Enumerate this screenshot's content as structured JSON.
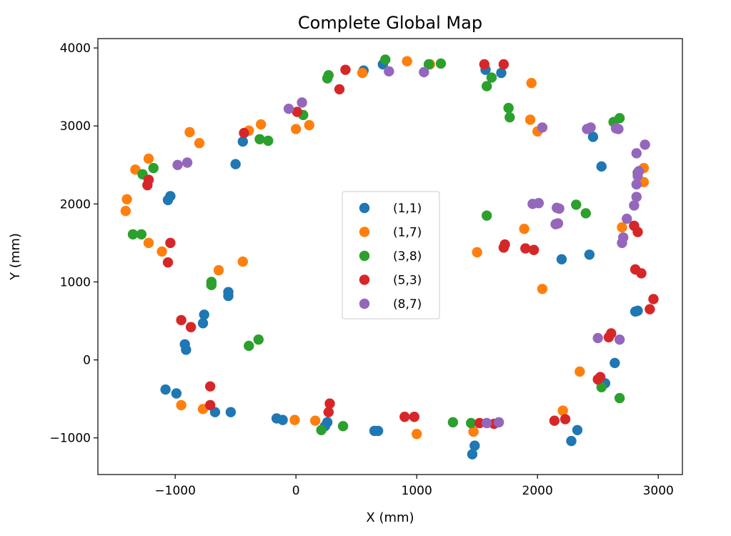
{
  "chart_data": {
    "type": "scatter",
    "title": "Complete Global Map",
    "xlabel": "X (mm)",
    "ylabel": "Y (mm)",
    "xlim": [
      -1640,
      3200
    ],
    "ylim": [
      -1470,
      4120
    ],
    "xticks": [
      -1000,
      0,
      1000,
      2000,
      3000
    ],
    "xtick_labels": [
      "−1000",
      "0",
      "1000",
      "2000",
      "3000"
    ],
    "yticks": [
      -1000,
      0,
      1000,
      2000,
      3000,
      4000
    ],
    "ytick_labels": [
      "−1000",
      "0",
      "1000",
      "2000",
      "3000",
      "4000"
    ],
    "grid": false,
    "legend_position": "center",
    "series": [
      {
        "name": "(1,1)",
        "color": "#1f77b4",
        "points": [
          [
            -1060,
            2050
          ],
          [
            -1040,
            2100
          ],
          [
            -500,
            2510
          ],
          [
            -440,
            2800
          ],
          [
            560,
            3710
          ],
          [
            720,
            3790
          ],
          [
            1570,
            3720
          ],
          [
            1700,
            3680
          ],
          [
            2460,
            2860
          ],
          [
            2530,
            2480
          ],
          [
            2430,
            1350
          ],
          [
            2200,
            1290
          ],
          [
            2810,
            620
          ],
          [
            2830,
            630
          ],
          [
            2640,
            -40
          ],
          [
            2560,
            -300
          ],
          [
            2330,
            -900
          ],
          [
            2280,
            -1040
          ],
          [
            1480,
            -1100
          ],
          [
            1460,
            -1210
          ],
          [
            650,
            -910
          ],
          [
            680,
            -910
          ],
          [
            260,
            -800
          ],
          [
            240,
            -850
          ],
          [
            -160,
            -750
          ],
          [
            -110,
            -770
          ],
          [
            -540,
            -670
          ],
          [
            -670,
            -670
          ],
          [
            -1080,
            -380
          ],
          [
            -990,
            -430
          ],
          [
            -920,
            200
          ],
          [
            -910,
            130
          ],
          [
            -760,
            580
          ],
          [
            -770,
            470
          ],
          [
            -560,
            870
          ],
          [
            -560,
            820
          ]
        ]
      },
      {
        "name": "(1,7)",
        "color": "#ff7f0e",
        "points": [
          [
            -1400,
            2060
          ],
          [
            -1410,
            1910
          ],
          [
            -1330,
            2440
          ],
          [
            -1220,
            2580
          ],
          [
            -880,
            2920
          ],
          [
            -800,
            2780
          ],
          [
            -290,
            3020
          ],
          [
            -390,
            2940
          ],
          [
            0,
            2960
          ],
          [
            110,
            3010
          ],
          [
            550,
            3680
          ],
          [
            920,
            3830
          ],
          [
            1110,
            3790
          ],
          [
            1950,
            3550
          ],
          [
            1940,
            3080
          ],
          [
            2000,
            2930
          ],
          [
            2880,
            2460
          ],
          [
            2880,
            2280
          ],
          [
            2700,
            1700
          ],
          [
            1890,
            1680
          ],
          [
            1500,
            1380
          ],
          [
            2040,
            910
          ],
          [
            2350,
            -150
          ],
          [
            2210,
            -650
          ],
          [
            1470,
            -920
          ],
          [
            1000,
            -950
          ],
          [
            160,
            -780
          ],
          [
            -10,
            -770
          ],
          [
            -770,
            -630
          ],
          [
            -950,
            -580
          ],
          [
            -1110,
            1390
          ],
          [
            -1220,
            1500
          ],
          [
            -640,
            1150
          ],
          [
            -440,
            1260
          ]
        ]
      },
      {
        "name": "(3,8)",
        "color": "#2ca02c",
        "points": [
          [
            -1350,
            1610
          ],
          [
            -1280,
            1610
          ],
          [
            -1270,
            2380
          ],
          [
            -1180,
            2460
          ],
          [
            -300,
            2830
          ],
          [
            -230,
            2810
          ],
          [
            60,
            3140
          ],
          [
            260,
            3610
          ],
          [
            270,
            3650
          ],
          [
            740,
            3850
          ],
          [
            1100,
            3790
          ],
          [
            1200,
            3800
          ],
          [
            1620,
            3620
          ],
          [
            1580,
            3510
          ],
          [
            1760,
            3230
          ],
          [
            1770,
            3110
          ],
          [
            2630,
            3050
          ],
          [
            2680,
            3100
          ],
          [
            2830,
            2400
          ],
          [
            2320,
            1990
          ],
          [
            2400,
            1880
          ],
          [
            1580,
            1850
          ],
          [
            2680,
            -490
          ],
          [
            2530,
            -350
          ],
          [
            1450,
            -810
          ],
          [
            1300,
            -800
          ],
          [
            390,
            -850
          ],
          [
            210,
            -900
          ],
          [
            -310,
            260
          ],
          [
            -390,
            180
          ],
          [
            -700,
            1000
          ],
          [
            -700,
            960
          ]
        ]
      },
      {
        "name": "(5,3)",
        "color": "#d62728",
        "points": [
          [
            -1220,
            2310
          ],
          [
            -1230,
            2240
          ],
          [
            -430,
            2910
          ],
          [
            10,
            3180
          ],
          [
            360,
            3470
          ],
          [
            410,
            3720
          ],
          [
            1560,
            3790
          ],
          [
            1720,
            3790
          ],
          [
            2800,
            1720
          ],
          [
            2830,
            1640
          ],
          [
            2810,
            1160
          ],
          [
            2860,
            1110
          ],
          [
            2960,
            780
          ],
          [
            2930,
            650
          ],
          [
            2610,
            340
          ],
          [
            2590,
            290
          ],
          [
            2520,
            -220
          ],
          [
            2500,
            -250
          ],
          [
            2230,
            -760
          ],
          [
            2140,
            -780
          ],
          [
            1640,
            -820
          ],
          [
            1520,
            -810
          ],
          [
            980,
            -730
          ],
          [
            900,
            -730
          ],
          [
            280,
            -560
          ],
          [
            270,
            -670
          ],
          [
            -710,
            -340
          ],
          [
            -710,
            -580
          ],
          [
            -950,
            510
          ],
          [
            -870,
            420
          ],
          [
            -1040,
            1500
          ],
          [
            -1060,
            1250
          ],
          [
            1720,
            1440
          ],
          [
            1730,
            1480
          ],
          [
            1900,
            1430
          ],
          [
            1970,
            1410
          ]
        ]
      },
      {
        "name": "(8,7)",
        "color": "#9467bd",
        "points": [
          [
            -980,
            2500
          ],
          [
            -900,
            2530
          ],
          [
            -60,
            3220
          ],
          [
            50,
            3300
          ],
          [
            770,
            3700
          ],
          [
            1060,
            3690
          ],
          [
            2040,
            2980
          ],
          [
            2410,
            2960
          ],
          [
            2440,
            2980
          ],
          [
            2670,
            2960
          ],
          [
            2650,
            2970
          ],
          [
            2890,
            2760
          ],
          [
            2820,
            2650
          ],
          [
            2840,
            2420
          ],
          [
            2830,
            2360
          ],
          [
            2820,
            2250
          ],
          [
            2820,
            2090
          ],
          [
            2800,
            1980
          ],
          [
            2740,
            1810
          ],
          [
            2710,
            1570
          ],
          [
            2700,
            1500
          ],
          [
            1960,
            2000
          ],
          [
            2010,
            2010
          ],
          [
            2160,
            1950
          ],
          [
            2180,
            1940
          ],
          [
            2170,
            1750
          ],
          [
            2150,
            1740
          ],
          [
            2680,
            260
          ],
          [
            2500,
            280
          ],
          [
            1580,
            -810
          ],
          [
            1680,
            -800
          ]
        ]
      }
    ]
  }
}
